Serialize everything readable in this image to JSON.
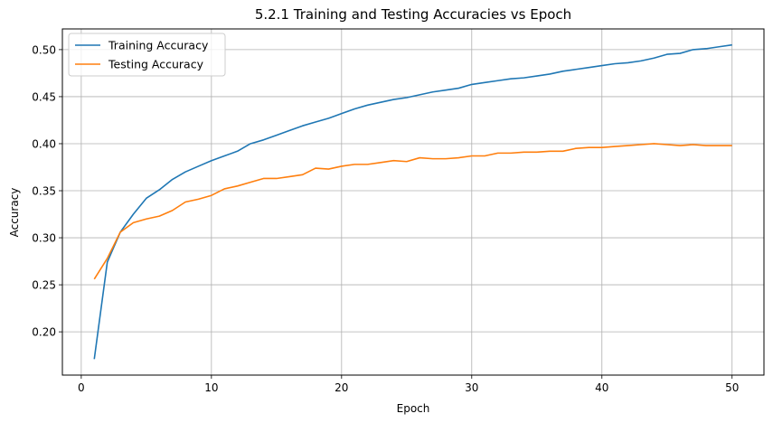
{
  "chart_data": {
    "type": "line",
    "title": "5.2.1 Training and Testing Accuracies vs Epoch",
    "xlabel": "Epoch",
    "ylabel": "Accuracy",
    "xlim": [
      -1.45,
      52.45
    ],
    "ylim": [
      0.154,
      0.522
    ],
    "xticks": [
      0,
      10,
      20,
      30,
      40,
      50
    ],
    "yticks": [
      0.2,
      0.25,
      0.3,
      0.35,
      0.4,
      0.45,
      0.5
    ],
    "ytick_labels": [
      "0.20",
      "0.25",
      "0.30",
      "0.35",
      "0.40",
      "0.45",
      "0.50"
    ],
    "grid": true,
    "legend_position": "top-left",
    "x": [
      1,
      2,
      3,
      4,
      5,
      6,
      7,
      8,
      9,
      10,
      11,
      12,
      13,
      14,
      15,
      16,
      17,
      18,
      19,
      20,
      21,
      22,
      23,
      24,
      25,
      26,
      27,
      28,
      29,
      30,
      31,
      32,
      33,
      34,
      35,
      36,
      37,
      38,
      39,
      40,
      41,
      42,
      43,
      44,
      45,
      46,
      47,
      48,
      49,
      50
    ],
    "series": [
      {
        "name": "Training Accuracy",
        "color": "#1f77b4",
        "values": [
          0.171,
          0.274,
          0.306,
          0.325,
          0.342,
          0.351,
          0.362,
          0.37,
          0.376,
          0.382,
          0.387,
          0.392,
          0.4,
          0.404,
          0.409,
          0.414,
          0.419,
          0.423,
          0.427,
          0.432,
          0.437,
          0.441,
          0.444,
          0.447,
          0.449,
          0.452,
          0.455,
          0.457,
          0.459,
          0.463,
          0.465,
          0.467,
          0.469,
          0.47,
          0.472,
          0.474,
          0.477,
          0.479,
          0.481,
          0.483,
          0.485,
          0.486,
          0.488,
          0.491,
          0.495,
          0.496,
          0.5,
          0.501,
          0.503,
          0.505
        ]
      },
      {
        "name": "Testing Accuracy",
        "color": "#ff7f0e",
        "values": [
          0.256,
          0.278,
          0.306,
          0.316,
          0.32,
          0.323,
          0.329,
          0.338,
          0.341,
          0.345,
          0.352,
          0.355,
          0.359,
          0.363,
          0.363,
          0.365,
          0.367,
          0.374,
          0.373,
          0.376,
          0.378,
          0.378,
          0.38,
          0.382,
          0.381,
          0.385,
          0.384,
          0.384,
          0.385,
          0.387,
          0.387,
          0.39,
          0.39,
          0.391,
          0.391,
          0.392,
          0.392,
          0.395,
          0.396,
          0.396,
          0.397,
          0.398,
          0.399,
          0.4,
          0.399,
          0.398,
          0.399,
          0.398,
          0.398,
          0.398
        ]
      }
    ]
  }
}
